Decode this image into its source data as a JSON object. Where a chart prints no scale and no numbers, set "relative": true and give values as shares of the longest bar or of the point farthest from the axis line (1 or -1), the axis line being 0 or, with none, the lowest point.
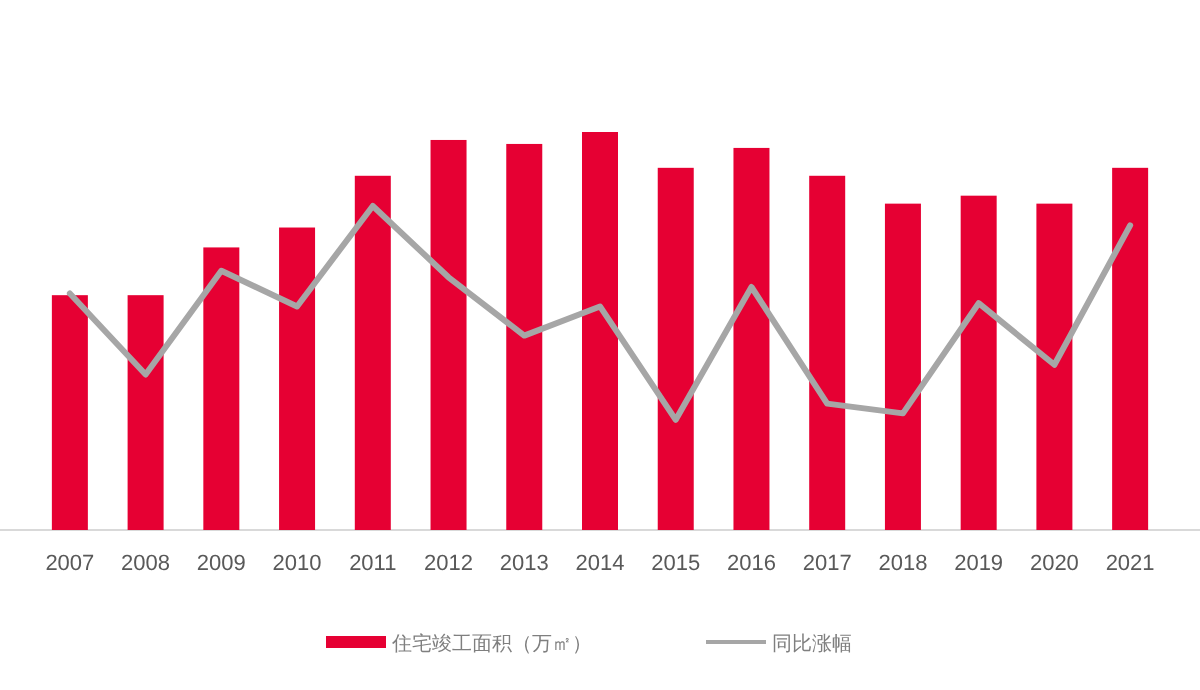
{
  "chart_data": {
    "type": "bar",
    "relative": true,
    "legend": "bottom",
    "categories": [
      "2007",
      "2008",
      "2009",
      "2010",
      "2011",
      "2012",
      "2013",
      "2014",
      "2015",
      "2016",
      "2017",
      "2018",
      "2019",
      "2020",
      "2021"
    ],
    "series": [
      {
        "name": "住宅竣工面积（万㎡）",
        "color": "#e60033",
        "values": [
          0.59,
          0.59,
          0.71,
          0.76,
          0.89,
          0.98,
          0.97,
          1,
          0.91,
          0.96,
          0.89,
          0.82,
          0.84,
          0.82,
          0.91
        ]
      },
      {
        "name": "同比涨幅",
        "type": "line",
        "axis": "y2",
        "color": "#a6a6a6",
        "values": [
          0.73,
          0.48,
          0.8,
          0.69,
          1,
          0.78,
          0.6,
          0.69,
          0.34,
          0.75,
          0.39,
          0.36,
          0.7,
          0.51,
          0.94
        ]
      }
    ]
  }
}
